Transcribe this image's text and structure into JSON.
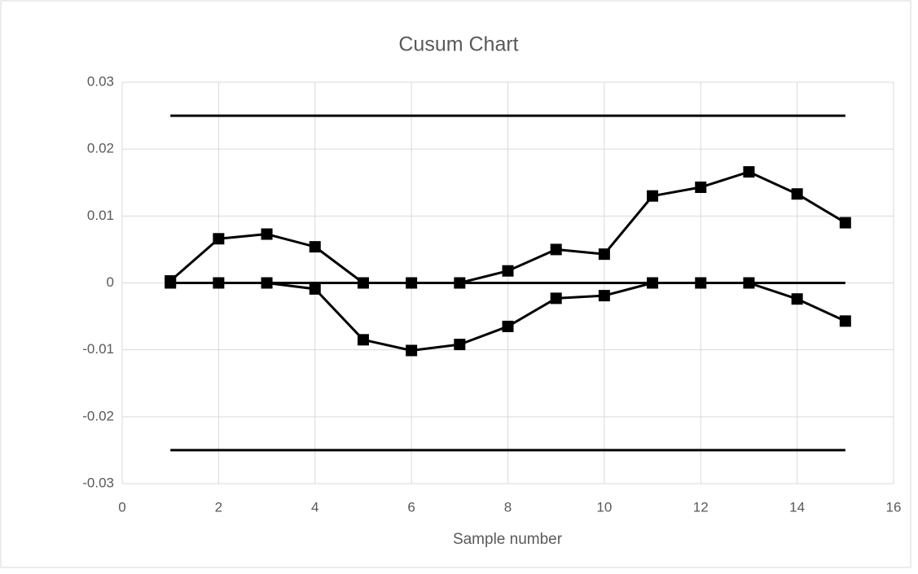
{
  "chart_data": {
    "type": "line",
    "title": "Cusum Chart",
    "x_label": "Sample number",
    "x": [
      1,
      2,
      3,
      4,
      5,
      6,
      7,
      8,
      9,
      10,
      11,
      12,
      13,
      14,
      15
    ],
    "series": [
      {
        "color": "#000000",
        "marker": false,
        "values": [
          0.025,
          0.025,
          0.025,
          0.025,
          0.025,
          0.025,
          0.025,
          0.025,
          0.025,
          0.025,
          0.025,
          0.025,
          0.025,
          0.025,
          0.025
        ]
      },
      {
        "color": "#000000",
        "marker": false,
        "values": [
          0,
          0,
          0,
          0,
          0,
          0,
          0,
          0,
          0,
          0,
          0,
          0,
          0,
          0,
          0
        ]
      },
      {
        "color": "#000000",
        "marker": false,
        "values": [
          -0.025,
          -0.025,
          -0.025,
          -0.025,
          -0.025,
          -0.025,
          -0.025,
          -0.025,
          -0.025,
          -0.025,
          -0.025,
          -0.025,
          -0.025,
          -0.025,
          -0.025
        ]
      },
      {
        "color": "#000000",
        "marker": true,
        "values": [
          0.0003,
          0.0066,
          0.0073,
          0.0054,
          0,
          0,
          0,
          0.0018,
          0.005,
          0.0043,
          0.013,
          0.0143,
          0.0166,
          0.0133,
          0.009
        ]
      },
      {
        "color": "#000000",
        "marker": true,
        "values": [
          0,
          0,
          0,
          -0.0009,
          -0.0085,
          -0.0101,
          -0.0092,
          -0.0065,
          -0.0023,
          -0.0019,
          0,
          0,
          0,
          -0.0024,
          -0.0057
        ]
      }
    ],
    "xlim": [
      0,
      16
    ],
    "xticks": [
      0,
      2,
      4,
      6,
      8,
      10,
      12,
      14,
      16
    ],
    "ylim": [
      -0.03,
      0.03
    ],
    "yticks": [
      -0.03,
      -0.02,
      -0.01,
      0,
      0.01,
      0.02,
      0.03
    ],
    "grid": true
  }
}
